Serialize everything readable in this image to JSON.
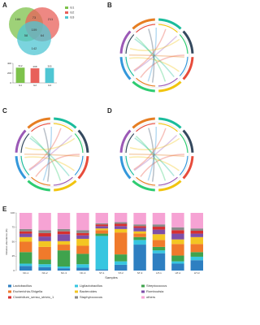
{
  "panels": {
    "a": "A",
    "b": "B",
    "c": "C",
    "d": "D",
    "e": "E"
  },
  "venn": {
    "sets": [
      "G1",
      "G2",
      "G3"
    ],
    "colors": [
      "#7dc24b",
      "#e8605a",
      "#4fc6d3"
    ],
    "counts": [
      186,
      211,
      142,
      73,
      58,
      64,
      109
    ]
  },
  "chart_data": [
    {
      "type": "bar",
      "categories": [
        "G1",
        "G2",
        "G3"
      ],
      "values": [
        312,
        298,
        305
      ],
      "colors": [
        "#7dc24b",
        "#e8605a",
        "#4fc6d3"
      ],
      "ylim": [
        0,
        400
      ],
      "yticks": [
        0,
        200,
        400
      ]
    },
    {
      "type": "stacked-bar",
      "xlabel": "Samples",
      "ylabel": "Relative abundance (%)",
      "categories": [
        "NC-1",
        "NC-2",
        "NC-3",
        "NC-4",
        "ST-1",
        "ST-2",
        "ST-3",
        "HT-1",
        "HT-2",
        "HT-3"
      ],
      "ylim": [
        0,
        100
      ],
      "yticks": [
        0,
        25,
        50,
        75,
        100
      ],
      "series": [
        {
          "name": "Lactobacillus",
          "color": "#2e7fc1",
          "values": [
            8,
            6,
            4,
            5,
            2,
            10,
            45,
            30,
            12,
            18
          ]
        },
        {
          "name": "Ligilactobacillus",
          "color": "#37c6e0",
          "values": [
            4,
            5,
            3,
            6,
            58,
            6,
            8,
            5,
            4,
            6
          ]
        },
        {
          "name": "Streptococcus",
          "color": "#3fa34d",
          "values": [
            20,
            8,
            28,
            18,
            4,
            12,
            5,
            6,
            10,
            8
          ]
        },
        {
          "name": "Escherichia-Shigella",
          "color": "#f07a2b",
          "values": [
            18,
            22,
            10,
            14,
            6,
            38,
            6,
            12,
            20,
            14
          ]
        },
        {
          "name": "Bacteroides",
          "color": "#f3c623",
          "values": [
            8,
            10,
            6,
            12,
            3,
            6,
            4,
            10,
            8,
            12
          ]
        },
        {
          "name": "Romboutsia",
          "color": "#7e4fa8",
          "values": [
            6,
            8,
            12,
            6,
            4,
            5,
            6,
            8,
            10,
            6
          ]
        },
        {
          "name": "Clostridium_sensu_stricto_1",
          "color": "#d73030",
          "values": [
            4,
            6,
            5,
            4,
            3,
            4,
            3,
            5,
            6,
            5
          ]
        },
        {
          "name": "Staphylococcus",
          "color": "#8a8a8a",
          "values": [
            4,
            5,
            4,
            5,
            2,
            3,
            3,
            4,
            5,
            4
          ]
        },
        {
          "name": "others",
          "color": "#f6a3d4",
          "values": [
            28,
            30,
            28,
            30,
            18,
            16,
            20,
            20,
            25,
            27
          ]
        }
      ]
    }
  ]
}
